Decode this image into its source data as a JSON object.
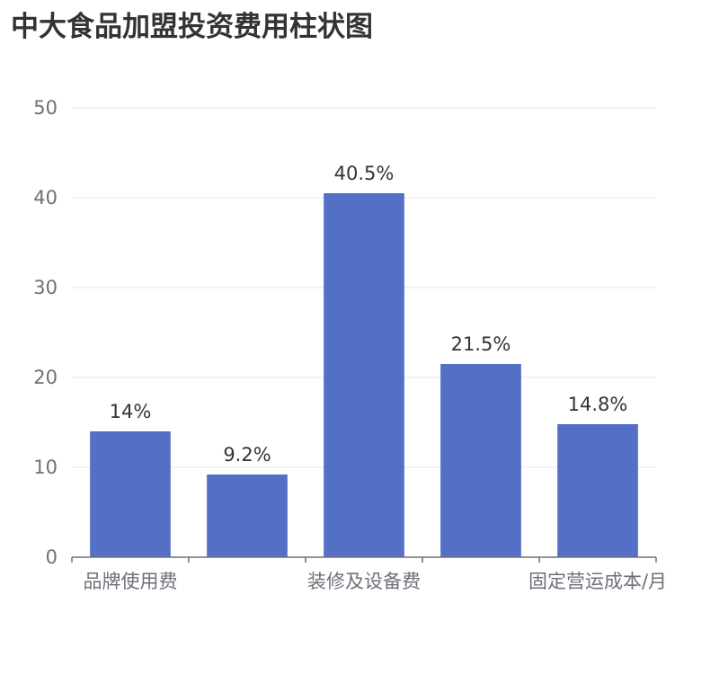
{
  "chart_data": {
    "type": "bar",
    "title": "中大食品加盟投资费用柱状图",
    "categories": [
      "品牌使用费",
      "",
      "装修及设备费",
      "",
      "固定营运成本/月"
    ],
    "values": [
      14,
      9.2,
      40.5,
      21.5,
      14.8
    ],
    "data_labels": [
      "14%",
      "9.2%",
      "40.5%",
      "21.5%",
      "14.8%"
    ],
    "y_ticks": [
      "0",
      "10",
      "20",
      "30",
      "40",
      "50"
    ],
    "ylim": [
      0,
      50
    ],
    "grid": true,
    "legend": "none",
    "colors": {
      "bar": "#5470c6",
      "grid": "#e0e6f1",
      "axis": "#6e7079"
    }
  }
}
